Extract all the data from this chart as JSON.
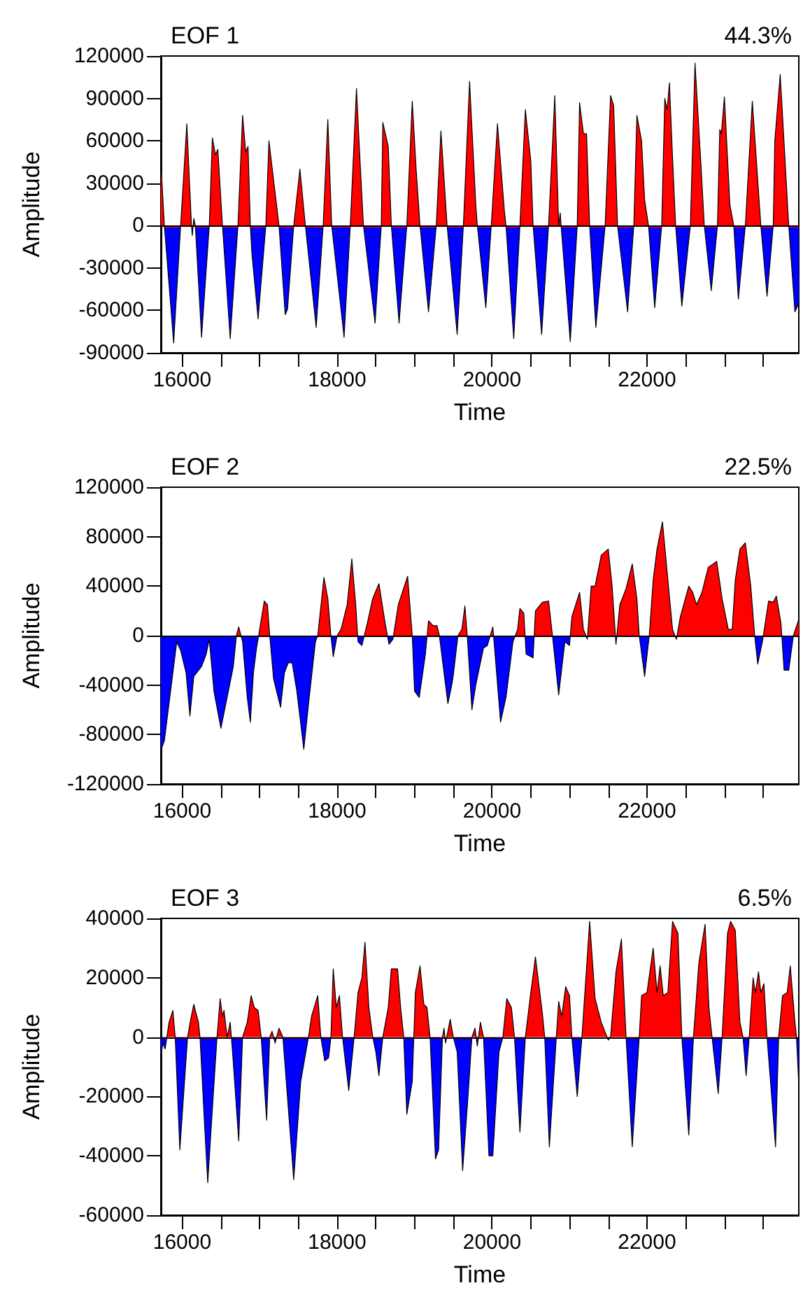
{
  "chart_data": [
    {
      "type": "area",
      "title": "EOF 1",
      "subtitle": "44.3%",
      "xlabel": "Time",
      "ylabel": "Amplitude",
      "xlim": [
        15725,
        23960
      ],
      "xticks": [
        16000,
        {
          "value": 16500,
          "label": null
        },
        {
          "value": 17000,
          "label": null
        },
        {
          "value": 17500,
          "label": null
        },
        18000,
        {
          "value": 18500,
          "label": null
        },
        {
          "value": 19000,
          "label": null
        },
        {
          "value": 19500,
          "label": null
        },
        20000,
        {
          "value": 20500,
          "label": null
        },
        {
          "value": 21000,
          "label": null
        },
        {
          "value": 21500,
          "label": null
        },
        22000,
        {
          "value": 22500,
          "label": null
        },
        {
          "value": 23000,
          "label": null
        },
        {
          "value": 23500,
          "label": null
        }
      ],
      "ylim": [
        -90000,
        120000
      ],
      "yticks": [
        -90000,
        -60000,
        -30000,
        0,
        30000,
        60000,
        90000,
        120000
      ],
      "ref_lines": [
        {
          "axis": "y",
          "value": 0,
          "color": "#000000"
        }
      ],
      "series": [
        {
          "colors": [
            "#ff0000",
            "#ff0000",
            "#0000ff",
            "#ff0000",
            "#ff0000",
            "#ff0000",
            "#0000ff",
            "#ff0000",
            "#ff0000",
            "#0000ff",
            "#ff0000",
            "#ff0000",
            "#ff0000",
            "#ff0000",
            "#ff0000",
            "#0000ff",
            "#ff0000",
            "#ff0000",
            "#ff0000",
            "#ff0000",
            "#ff0000",
            "#0000ff",
            "#0000ff",
            "#ff0000",
            "#ff0000",
            "#ff0000",
            "#0000ff",
            "#0000ff",
            "#ff0000",
            "#ff0000",
            "#ff0000",
            "#0000ff",
            "#ff0000",
            "#ff0000",
            "#ff0000",
            "#0000ff",
            "#ff0000",
            "#ff0000",
            "#ff0000",
            "#ff0000",
            "#0000ff",
            "#ff0000",
            "#ff0000",
            "#ff0000",
            "#ff0000",
            "#0000ff",
            "#ff0000",
            "#ff0000",
            "#ff0000",
            "#ff0000",
            "#0000ff",
            "#ff0000",
            "#ff0000",
            "#ff0000",
            "#0000ff",
            "#ff0000",
            "#ff0000",
            "#ff0000",
            "#ff0000",
            "#0000ff",
            "#ff0000",
            "#ff0000",
            "#ff0000",
            "#ff0000",
            "#0000ff",
            "#ff0000",
            "#ff0000",
            "#ff0000",
            "#ff0000",
            "#0000ff",
            "#ff0000",
            "#ff0000",
            "#ff0000",
            "#ff0000",
            "#0000ff",
            "#0000ff",
            "#ff0000",
            "#ff0000",
            "#ff0000",
            "#ff0000",
            "#ff0000",
            "#0000ff",
            "#ff0000",
            "#ff0000",
            "#ff0000",
            "#ff0000",
            "#0000ff",
            "#ff0000",
            "#ff0000",
            "#ff0000",
            "#ff0000",
            "#ff0000",
            "#0000ff",
            "#ff0000",
            "#ff0000",
            "#ff0000",
            "#ff0000",
            "#ff0000",
            "#ff0000",
            "#0000ff",
            "#ff0000",
            "#ff0000",
            "#ff0000",
            "#ff0000",
            "#0000ff",
            "#ff0000",
            "#ff0000",
            "#ff0000",
            "#ff0000",
            "#ff0000",
            "#ff0000",
            "#0000ff",
            "#ff0000",
            "#ff0000",
            "#ff0000",
            "#0000ff",
            "#ff0000",
            "#ff0000",
            "#ff0000",
            "#ff0000",
            "#0000ff",
            "#0000ff"
          ],
          "x": [
            15725,
            15770,
            15890,
            15980,
            16060,
            16120,
            16130,
            16150,
            16170,
            16250,
            16350,
            16390,
            16430,
            16460,
            16520,
            16620,
            16720,
            16780,
            16820,
            16850,
            16880,
            16900,
            16980,
            17080,
            17120,
            17250,
            17330,
            17360,
            17440,
            17520,
            17590,
            17730,
            17820,
            17880,
            17930,
            18090,
            18170,
            18250,
            18290,
            18340,
            18490,
            18570,
            18590,
            18660,
            18700,
            18800,
            18900,
            18970,
            19020,
            19070,
            19180,
            19280,
            19340,
            19420,
            19550,
            19630,
            19710,
            19790,
            19810,
            19920,
            19990,
            20070,
            20160,
            20180,
            20280,
            20360,
            20430,
            20500,
            20530,
            20640,
            20730,
            20810,
            20860,
            20880,
            20900,
            21010,
            21100,
            21130,
            21180,
            21220,
            21260,
            21340,
            21460,
            21530,
            21570,
            21620,
            21750,
            21830,
            21870,
            21930,
            21970,
            22020,
            22100,
            22190,
            22230,
            22260,
            22290,
            22330,
            22370,
            22450,
            22560,
            22620,
            22700,
            22740,
            22830,
            22910,
            22940,
            22960,
            23000,
            23070,
            23120,
            23180,
            23270,
            23360,
            23470,
            23550,
            23630,
            23650,
            23720,
            23830,
            23910,
            23960
          ],
          "values": [
            45000,
            0,
            -83000,
            0,
            72000,
            0,
            -7000,
            5000,
            0,
            -79000,
            0,
            62000,
            50000,
            54000,
            0,
            -80000,
            0,
            78000,
            52000,
            56000,
            0,
            -20000,
            -66000,
            0,
            60000,
            0,
            -63000,
            -59000,
            0,
            40000,
            0,
            -72000,
            0,
            75000,
            0,
            -79000,
            0,
            97000,
            52000,
            0,
            -69000,
            0,
            73000,
            56000,
            0,
            -69000,
            0,
            88000,
            40000,
            0,
            -61000,
            0,
            67000,
            0,
            -77000,
            0,
            102000,
            15000,
            0,
            -58000,
            0,
            72000,
            10000,
            0,
            -80000,
            0,
            82000,
            46000,
            0,
            -77000,
            0,
            92000,
            0,
            9000,
            -6000,
            -82000,
            0,
            87000,
            65000,
            65000,
            0,
            -72000,
            0,
            92000,
            85000,
            0,
            -61000,
            0,
            78000,
            60000,
            18000,
            0,
            -58000,
            0,
            90000,
            82000,
            101000,
            48000,
            0,
            -57000,
            0,
            115000,
            40000,
            0,
            -46000,
            0,
            68000,
            65000,
            91000,
            15000,
            0,
            -52000,
            0,
            88000,
            0,
            -50000,
            0,
            60000,
            107000,
            0,
            -61000,
            -55000
          ]
        }
      ]
    },
    {
      "type": "area",
      "title": "EOF 2",
      "subtitle": "22.5%",
      "xlabel": "Time",
      "ylabel": "Amplitude",
      "xlim": [
        15725,
        23960
      ],
      "xticks": [
        16000,
        {
          "value": 16500,
          "label": null
        },
        {
          "value": 17000,
          "label": null
        },
        {
          "value": 17500,
          "label": null
        },
        18000,
        {
          "value": 18500,
          "label": null
        },
        {
          "value": 19000,
          "label": null
        },
        {
          "value": 19500,
          "label": null
        },
        20000,
        {
          "value": 20500,
          "label": null
        },
        {
          "value": 21000,
          "label": null
        },
        {
          "value": 21500,
          "label": null
        },
        22000,
        {
          "value": 22500,
          "label": null
        },
        {
          "value": 23000,
          "label": null
        },
        {
          "value": 23500,
          "label": null
        }
      ],
      "ylim": [
        -120000,
        120000
      ],
      "yticks": [
        -120000,
        -80000,
        -40000,
        0,
        40000,
        80000,
        120000
      ],
      "ref_lines": [
        {
          "axis": "y",
          "value": 0,
          "color": "#000000"
        }
      ],
      "series": [
        {
          "colors": [
            "#0000ff",
            "#0000ff",
            "#0000ff",
            "#0000ff",
            "#0000ff",
            "#0000ff",
            "#0000ff",
            "#0000ff",
            "#0000ff",
            "#0000ff",
            "#0000ff",
            "#0000ff",
            "#0000ff",
            "#0000ff",
            "#0000ff",
            "#ff0000",
            "#ff0000",
            "#0000ff",
            "#0000ff",
            "#0000ff",
            "#0000ff",
            "#0000ff",
            "#ff0000",
            "#ff0000",
            "#ff0000",
            "#ff0000",
            "#0000ff",
            "#0000ff",
            "#0000ff",
            "#0000ff",
            "#0000ff",
            "#0000ff",
            "#0000ff",
            "#0000ff",
            "#0000ff",
            "#ff0000",
            "#ff0000",
            "#ff0000",
            "#ff0000",
            "#0000ff",
            "#ff0000",
            "#ff0000",
            "#ff0000",
            "#ff0000",
            "#ff0000",
            "#0000ff",
            "#0000ff",
            "#ff0000",
            "#ff0000",
            "#ff0000",
            "#ff0000",
            "#0000ff",
            "#0000ff",
            "#ff0000",
            "#ff0000",
            "#ff0000",
            "#0000ff",
            "#0000ff",
            "#0000ff",
            "#ff0000",
            "#ff0000",
            "#ff0000",
            "#ff0000",
            "#0000ff",
            "#0000ff",
            "#0000ff",
            "#0000ff",
            "#ff0000",
            "#ff0000",
            "#ff0000",
            "#ff0000",
            "#0000ff",
            "#0000ff",
            "#0000ff",
            "#0000ff",
            "#ff0000",
            "#0000ff",
            "#0000ff",
            "#0000ff",
            "#0000ff",
            "#ff0000",
            "#ff0000",
            "#ff0000",
            "#0000ff",
            "#0000ff",
            "#ff0000",
            "#ff0000",
            "#ff0000",
            "#ff0000",
            "#0000ff",
            "#0000ff",
            "#0000ff",
            "#ff0000",
            "#ff0000",
            "#ff0000",
            "#0000ff",
            "#ff0000",
            "#ff0000",
            "#ff0000",
            "#ff0000",
            "#ff0000",
            "#0000ff",
            "#ff0000",
            "#ff0000",
            "#ff0000",
            "#ff0000",
            "#ff0000",
            "#0000ff",
            "#ff0000",
            "#ff0000",
            "#ff0000",
            "#ff0000",
            "#ff0000",
            "#ff0000",
            "#0000ff",
            "#ff0000",
            "#ff0000",
            "#ff0000",
            "#ff0000",
            "#ff0000",
            "#ff0000",
            "#ff0000",
            "#ff0000",
            "#ff0000",
            "#ff0000",
            "#ff0000",
            "#ff0000",
            "#ff0000",
            "#ff0000",
            "#ff0000",
            "#0000ff",
            "#0000ff",
            "#ff0000",
            "#ff0000",
            "#ff0000",
            "#ff0000",
            "#0000ff",
            "#0000ff",
            "#ff0000",
            "#ff0000"
          ],
          "x": [
            15725,
            15770,
            15850,
            15930,
            15980,
            16050,
            16100,
            16150,
            16250,
            16310,
            16350,
            16410,
            16500,
            16580,
            16660,
            16700,
            16730,
            16780,
            16840,
            16880,
            16920,
            16960,
            17000,
            17060,
            17100,
            17130,
            17180,
            17270,
            17320,
            17370,
            17420,
            17480,
            17570,
            17640,
            17720,
            17750,
            17830,
            17880,
            17920,
            17950,
            18000,
            18050,
            18130,
            18190,
            18240,
            18270,
            18320,
            18390,
            18460,
            18540,
            18620,
            18670,
            18720,
            18790,
            18910,
            18970,
            19000,
            19060,
            19140,
            19180,
            19240,
            19290,
            19320,
            19360,
            19430,
            19480,
            19500,
            19560,
            19610,
            19650,
            19680,
            19740,
            19790,
            19890,
            19940,
            20010,
            20030,
            20110,
            20180,
            20270,
            20330,
            20360,
            20410,
            20440,
            20530,
            20560,
            20650,
            20730,
            20780,
            20860,
            20940,
            21000,
            21030,
            21130,
            21180,
            21230,
            21280,
            21330,
            21410,
            21500,
            21550,
            21600,
            21650,
            21730,
            21810,
            21870,
            21900,
            21970,
            22030,
            22080,
            22130,
            22200,
            22270,
            22330,
            22380,
            22430,
            22540,
            22590,
            22640,
            22710,
            22790,
            22900,
            22970,
            23050,
            23100,
            23140,
            23200,
            23270,
            23340,
            23390,
            23430,
            23490,
            23570,
            23630,
            23670,
            23730,
            23770,
            23830,
            23890,
            23960
          ],
          "values": [
            -93000,
            -85000,
            -45000,
            -5000,
            -12000,
            -30000,
            -65000,
            -33000,
            -25000,
            -15000,
            -3000,
            -45000,
            -75000,
            -50000,
            -25000,
            0,
            7000,
            -5000,
            -50000,
            -70000,
            -30000,
            -10000,
            5000,
            28000,
            25000,
            0,
            -35000,
            -58000,
            -30000,
            -22000,
            -22000,
            -45000,
            -92000,
            -50000,
            -5000,
            0,
            47000,
            30000,
            0,
            -17000,
            0,
            5000,
            25000,
            62000,
            25000,
            -5000,
            -8000,
            10000,
            30000,
            42000,
            10000,
            -7000,
            -3000,
            25000,
            48000,
            0,
            -45000,
            -50000,
            -15000,
            12000,
            8000,
            8000,
            0,
            -20000,
            -55000,
            -40000,
            -32000,
            0,
            5000,
            24000,
            0,
            -60000,
            -40000,
            -10000,
            -8000,
            7000,
            -8000,
            -70000,
            -50000,
            -5000,
            5000,
            22000,
            18000,
            -15000,
            -18000,
            20000,
            27000,
            28000,
            0,
            -48000,
            -5000,
            -8000,
            15000,
            35000,
            5000,
            -3000,
            40000,
            40000,
            65000,
            70000,
            40000,
            -7000,
            25000,
            38000,
            58000,
            30000,
            0,
            -33000,
            0,
            45000,
            70000,
            92000,
            45000,
            5000,
            -3000,
            15000,
            40000,
            35000,
            25000,
            35000,
            55000,
            60000,
            30000,
            5000,
            5000,
            45000,
            70000,
            75000,
            40000,
            0,
            -23000,
            -5000,
            28000,
            27000,
            32000,
            10000,
            -28000,
            -28000,
            0,
            13000
          ]
        }
      ]
    },
    {
      "type": "area",
      "title": "EOF 3",
      "subtitle": "6.5%",
      "xlabel": "Time",
      "ylabel": "Amplitude",
      "xlim": [
        15725,
        23960
      ],
      "xticks": [
        16000,
        {
          "value": 16500,
          "label": null
        },
        {
          "value": 17000,
          "label": null
        },
        {
          "value": 17500,
          "label": null
        },
        18000,
        {
          "value": 18500,
          "label": null
        },
        {
          "value": 19000,
          "label": null
        },
        {
          "value": 19500,
          "label": null
        },
        20000,
        {
          "value": 20500,
          "label": null
        },
        {
          "value": 21000,
          "label": null
        },
        {
          "value": 21500,
          "label": null
        },
        22000,
        {
          "value": 22500,
          "label": null
        },
        {
          "value": 23000,
          "label": null
        },
        {
          "value": 23500,
          "label": null
        }
      ],
      "ylim": [
        -60000,
        40000
      ],
      "yticks": [
        -60000,
        -40000,
        -20000,
        0,
        20000,
        40000
      ],
      "ref_lines": [
        {
          "axis": "y",
          "value": 0,
          "color": "#000000"
        }
      ],
      "series": [
        {
          "colors": [
            "#0000ff",
            "#0000ff",
            "#0000ff",
            "#ff0000",
            "#ff0000",
            "#ff0000",
            "#0000ff",
            "#0000ff",
            "#ff0000",
            "#ff0000",
            "#ff0000",
            "#ff0000",
            "#ff0000",
            "#0000ff",
            "#0000ff",
            "#0000ff",
            "#ff0000",
            "#ff0000",
            "#ff0000",
            "#ff0000",
            "#ff0000",
            "#ff0000",
            "#0000ff",
            "#0000ff",
            "#ff0000",
            "#ff0000",
            "#ff0000",
            "#ff0000",
            "#ff0000",
            "#ff0000",
            "#0000ff",
            "#ff0000",
            "#ff0000",
            "#0000ff",
            "#ff0000",
            "#ff0000",
            "#0000ff",
            "#0000ff",
            "#ff0000",
            "#ff0000",
            "#ff0000",
            "#ff0000",
            "#0000ff",
            "#0000ff",
            "#ff0000",
            "#ff0000",
            "#ff0000",
            "#ff0000",
            "#ff0000",
            "#0000ff",
            "#ff0000",
            "#ff0000",
            "#ff0000",
            "#ff0000",
            "#ff0000",
            "#ff0000",
            "#0000ff",
            "#0000ff",
            "#ff0000",
            "#ff0000",
            "#ff0000",
            "#ff0000",
            "#ff0000",
            "#ff0000",
            "#0000ff",
            "#0000ff",
            "#ff0000",
            "#ff0000",
            "#ff0000",
            "#ff0000",
            "#ff0000",
            "#0000ff",
            "#0000ff",
            "#ff0000",
            "#ff0000",
            "#0000ff",
            "#ff0000",
            "#ff0000",
            "#0000ff",
            "#0000ff",
            "#0000ff",
            "#ff0000",
            "#ff0000",
            "#0000ff",
            "#ff0000",
            "#ff0000",
            "#0000ff",
            "#0000ff",
            "#0000ff",
            "#ff0000",
            "#ff0000",
            "#ff0000",
            "#ff0000",
            "#0000ff",
            "#ff0000",
            "#ff0000",
            "#ff0000",
            "#ff0000",
            "#ff0000",
            "#0000ff",
            "#ff0000",
            "#ff0000",
            "#ff0000",
            "#ff0000",
            "#ff0000",
            "#ff0000",
            "#0000ff",
            "#ff0000",
            "#ff0000",
            "#ff0000",
            "#ff0000",
            "#0000ff",
            "#ff0000",
            "#ff0000",
            "#ff0000",
            "#ff0000",
            "#0000ff",
            "#ff0000",
            "#ff0000",
            "#ff0000",
            "#ff0000",
            "#ff0000",
            "#ff0000",
            "#ff0000",
            "#ff0000",
            "#ff0000",
            "#ff0000",
            "#ff0000",
            "#0000ff",
            "#ff0000",
            "#ff0000",
            "#ff0000",
            "#ff0000",
            "#ff0000",
            "#0000ff",
            "#ff0000",
            "#ff0000",
            "#ff0000",
            "#ff0000",
            "#ff0000",
            "#ff0000",
            "#0000ff",
            "#ff0000",
            "#ff0000",
            "#ff0000",
            "#ff0000",
            "#ff0000",
            "#ff0000",
            "#ff0000",
            "#0000ff",
            "#ff0000",
            "#ff0000",
            "#ff0000",
            "#ff0000",
            "#ff0000",
            "#ff0000",
            "#0000ff"
          ],
          "x": [
            15725,
            15750,
            15780,
            15830,
            15880,
            15910,
            15970,
            16030,
            16070,
            16110,
            16150,
            16210,
            16230,
            16290,
            16330,
            16400,
            16450,
            16490,
            16520,
            16540,
            16580,
            16620,
            16650,
            16730,
            16780,
            16840,
            16890,
            16930,
            16980,
            17020,
            17090,
            17130,
            17160,
            17200,
            17250,
            17300,
            17440,
            17530,
            17630,
            17670,
            17750,
            17790,
            17840,
            17890,
            17920,
            17950,
            17990,
            18030,
            18070,
            18150,
            18220,
            18270,
            18320,
            18360,
            18410,
            18460,
            18500,
            18540,
            18590,
            18660,
            18700,
            18780,
            18820,
            18860,
            18900,
            18970,
            19010,
            19070,
            19120,
            19160,
            19200,
            19270,
            19310,
            19360,
            19380,
            19400,
            19460,
            19500,
            19550,
            19620,
            19690,
            19740,
            19780,
            19810,
            19850,
            19890,
            19960,
            20010,
            20090,
            20140,
            20190,
            20250,
            20290,
            20360,
            20430,
            20500,
            20560,
            20650,
            20680,
            20740,
            20830,
            20860,
            20900,
            20950,
            21000,
            21030,
            21100,
            21160,
            21260,
            21330,
            21410,
            21500,
            21530,
            21600,
            21670,
            21730,
            21810,
            21900,
            21930,
            22000,
            22080,
            22130,
            22170,
            22210,
            22270,
            22330,
            22400,
            22450,
            22540,
            22600,
            22670,
            22750,
            22800,
            22840,
            22920,
            22970,
            23040,
            23080,
            23140,
            23200,
            23240,
            23280,
            23320,
            23370,
            23400,
            23440,
            23470,
            23510,
            23550,
            23660,
            23700,
            23750,
            23810,
            23850,
            23910,
            23930,
            23960
          ],
          "values": [
            -7000,
            -2000,
            -4000,
            5000,
            9000,
            0,
            -38000,
            -15000,
            0,
            6000,
            11000,
            5000,
            0,
            -30000,
            -49000,
            -20000,
            0,
            13000,
            7000,
            9000,
            0,
            5000,
            -5000,
            -35000,
            0,
            5000,
            14000,
            10000,
            9000,
            0,
            -28000,
            0,
            2000,
            -2000,
            3000,
            0,
            -48000,
            -15000,
            0,
            7000,
            14000,
            0,
            -8000,
            -7000,
            0,
            23000,
            10000,
            14000,
            0,
            -18000,
            0,
            15000,
            20000,
            32000,
            10000,
            0,
            -5000,
            -13000,
            0,
            10000,
            23000,
            23000,
            10000,
            0,
            -26000,
            -15000,
            15000,
            24000,
            11000,
            10000,
            0,
            -41000,
            -38000,
            0,
            3000,
            -2000,
            6000,
            0,
            -5000,
            -45000,
            -20000,
            0,
            3000,
            -3000,
            5000,
            0,
            -40000,
            -40000,
            -5000,
            0,
            13000,
            10000,
            0,
            -32000,
            0,
            15000,
            27000,
            8000,
            0,
            -37000,
            0,
            12000,
            7000,
            17000,
            14000,
            0,
            -20000,
            0,
            39000,
            13000,
            5000,
            -1000,
            0,
            22000,
            33000,
            0,
            -37000,
            0,
            14000,
            15000,
            30000,
            15000,
            24000,
            14000,
            15000,
            39000,
            35000,
            0,
            -33000,
            0,
            25000,
            38000,
            10000,
            0,
            -19000,
            0,
            35000,
            39000,
            36000,
            5000,
            0,
            -13000,
            0,
            20000,
            15000,
            22000,
            15000,
            18000,
            0,
            -37000,
            0,
            14000,
            15000,
            24000,
            5000,
            0,
            -16000
          ]
        }
      ]
    }
  ]
}
